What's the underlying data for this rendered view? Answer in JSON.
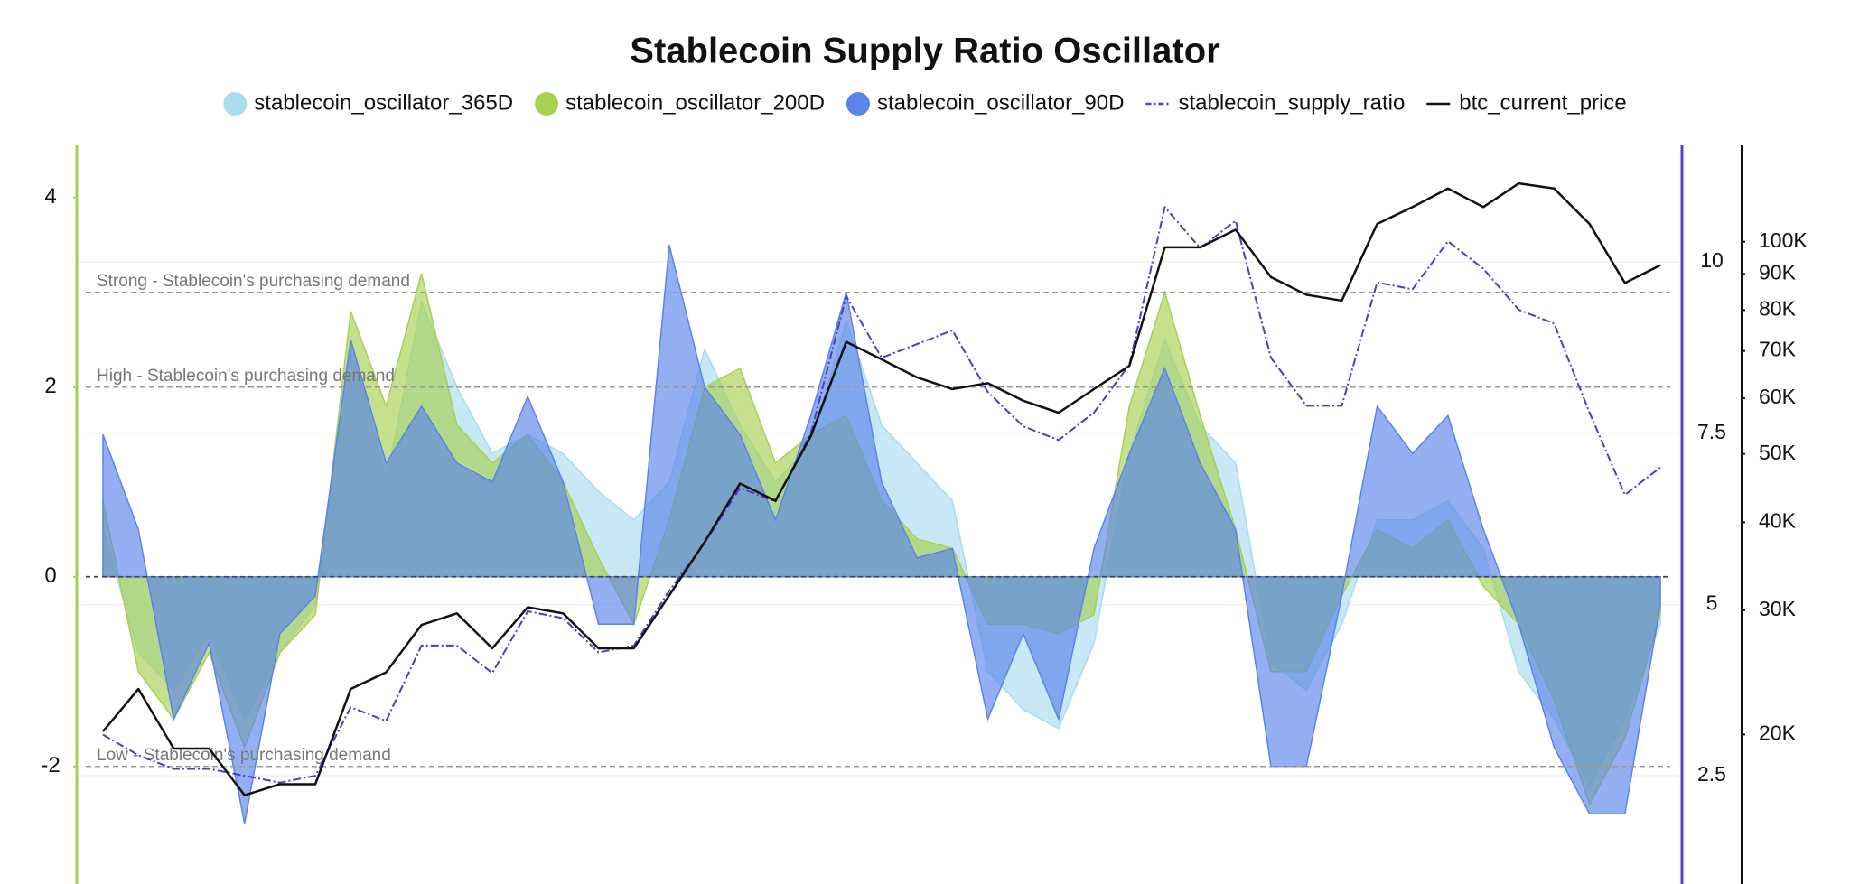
{
  "chart_data": {
    "type": "line",
    "title": "Stablecoin Supply Ratio Oscillator",
    "grid": true,
    "ylim": [
      -3.24,
      4.55
    ],
    "yticks": [
      -2,
      0,
      2,
      4
    ],
    "y2lim": [
      0.92,
      11.7
    ],
    "y2ticks": [
      2.5,
      5,
      7.5,
      10
    ],
    "y3lim": [
      12270,
      137000
    ],
    "y3_log_scale": true,
    "y3ticks": [
      {
        "value": 20000,
        "label": "20K"
      },
      {
        "value": 30000,
        "label": "30K"
      },
      {
        "value": 40000,
        "label": "40K"
      },
      {
        "value": 50000,
        "label": "50K"
      },
      {
        "value": 60000,
        "label": "60K"
      },
      {
        "value": 70000,
        "label": "70K"
      },
      {
        "value": 80000,
        "label": "80K"
      },
      {
        "value": 90000,
        "label": "90K"
      },
      {
        "value": 100000,
        "label": "100K"
      }
    ],
    "annotations": [
      {
        "label": "Strong - Stablecoin's purchasing demand",
        "value": 3
      },
      {
        "label": "High - Stablecoin's purchasing demand",
        "value": 2
      },
      {
        "label": "Low - Stablecoin's purchasing demand",
        "value": -2
      }
    ],
    "series": [
      {
        "name": "stablecoin_oscillator_365D",
        "type": "area",
        "color": "#a9dcee",
        "axis": "y",
        "values": [
          0.5,
          -0.8,
          -1.2,
          -0.6,
          -1.5,
          -0.8,
          -0.3,
          2.5,
          1.0,
          2.9,
          2.0,
          1.3,
          1.5,
          1.3,
          0.9,
          0.6,
          1.0,
          2.4,
          1.6,
          1.0,
          1.4,
          2.7,
          1.6,
          1.2,
          0.8,
          -1.0,
          -1.4,
          -1.6,
          -0.7,
          1.3,
          2.5,
          1.6,
          1.2,
          -0.9,
          -1.2,
          -0.5,
          0.6,
          0.6,
          0.8,
          0.3,
          -1.0,
          -1.5,
          -2.2,
          -1.5,
          -0.5
        ]
      },
      {
        "name": "stablecoin_oscillator_200D",
        "type": "area",
        "color": "#a7d150",
        "axis": "y",
        "values": [
          0.8,
          -1.0,
          -1.5,
          -0.8,
          -1.8,
          -0.8,
          -0.4,
          2.8,
          1.8,
          3.2,
          1.6,
          1.2,
          1.5,
          1.0,
          0.2,
          -0.5,
          0.6,
          2.0,
          2.2,
          1.2,
          1.5,
          1.7,
          0.8,
          0.4,
          0.3,
          -0.5,
          -0.5,
          -0.6,
          -0.4,
          1.8,
          3.0,
          1.7,
          0.5,
          -1.0,
          -1.0,
          -0.2,
          0.5,
          0.3,
          0.6,
          -0.1,
          -0.5,
          -1.3,
          -2.4,
          -1.7,
          -0.4
        ]
      },
      {
        "name": "stablecoin_oscillator_90D",
        "type": "area",
        "color": "#5b84ea",
        "axis": "y",
        "values": [
          1.5,
          0.5,
          -1.5,
          -0.7,
          -2.6,
          -0.6,
          -0.2,
          2.5,
          1.2,
          1.8,
          1.2,
          1.0,
          1.9,
          1.0,
          -0.5,
          -0.5,
          3.5,
          2.0,
          1.5,
          0.6,
          1.7,
          3.0,
          1.0,
          0.2,
          0.3,
          -1.5,
          -0.6,
          -1.5,
          0.3,
          1.3,
          2.2,
          1.2,
          0.5,
          -2.0,
          -2.0,
          -0.2,
          1.8,
          1.3,
          1.7,
          0.5,
          -0.5,
          -1.8,
          -2.5,
          -2.5,
          -0.3
        ]
      },
      {
        "name": "stablecoin_supply_ratio",
        "type": "line",
        "dashed": true,
        "color": "#4b3bd6",
        "axis": "y2",
        "values": [
          3.1,
          2.8,
          2.6,
          2.6,
          2.5,
          2.4,
          2.5,
          3.5,
          3.3,
          4.4,
          4.4,
          4.0,
          4.9,
          4.8,
          4.3,
          4.4,
          5.2,
          5.9,
          6.7,
          6.5,
          7.5,
          9.5,
          8.6,
          8.8,
          9.0,
          8.1,
          7.6,
          7.4,
          7.8,
          8.5,
          10.8,
          10.2,
          10.6,
          8.6,
          7.9,
          7.9,
          9.7,
          9.6,
          10.3,
          9.9,
          9.3,
          9.1,
          7.8,
          6.6,
          7.0
        ]
      },
      {
        "name": "btc_current_price",
        "type": "line",
        "color": "#111111",
        "axis": "y3",
        "values": [
          20200,
          23200,
          19100,
          19100,
          16400,
          17000,
          17000,
          23200,
          24500,
          28600,
          29700,
          26500,
          30300,
          29700,
          26500,
          26500,
          31500,
          37500,
          45400,
          42900,
          53000,
          72100,
          68100,
          64200,
          61800,
          63000,
          59500,
          57200,
          61800,
          66700,
          98200,
          98200,
          104000,
          89100,
          84100,
          82500,
          106000,
          112000,
          119000,
          112000,
          121000,
          119000,
          106000,
          87400,
          92600
        ]
      }
    ]
  }
}
